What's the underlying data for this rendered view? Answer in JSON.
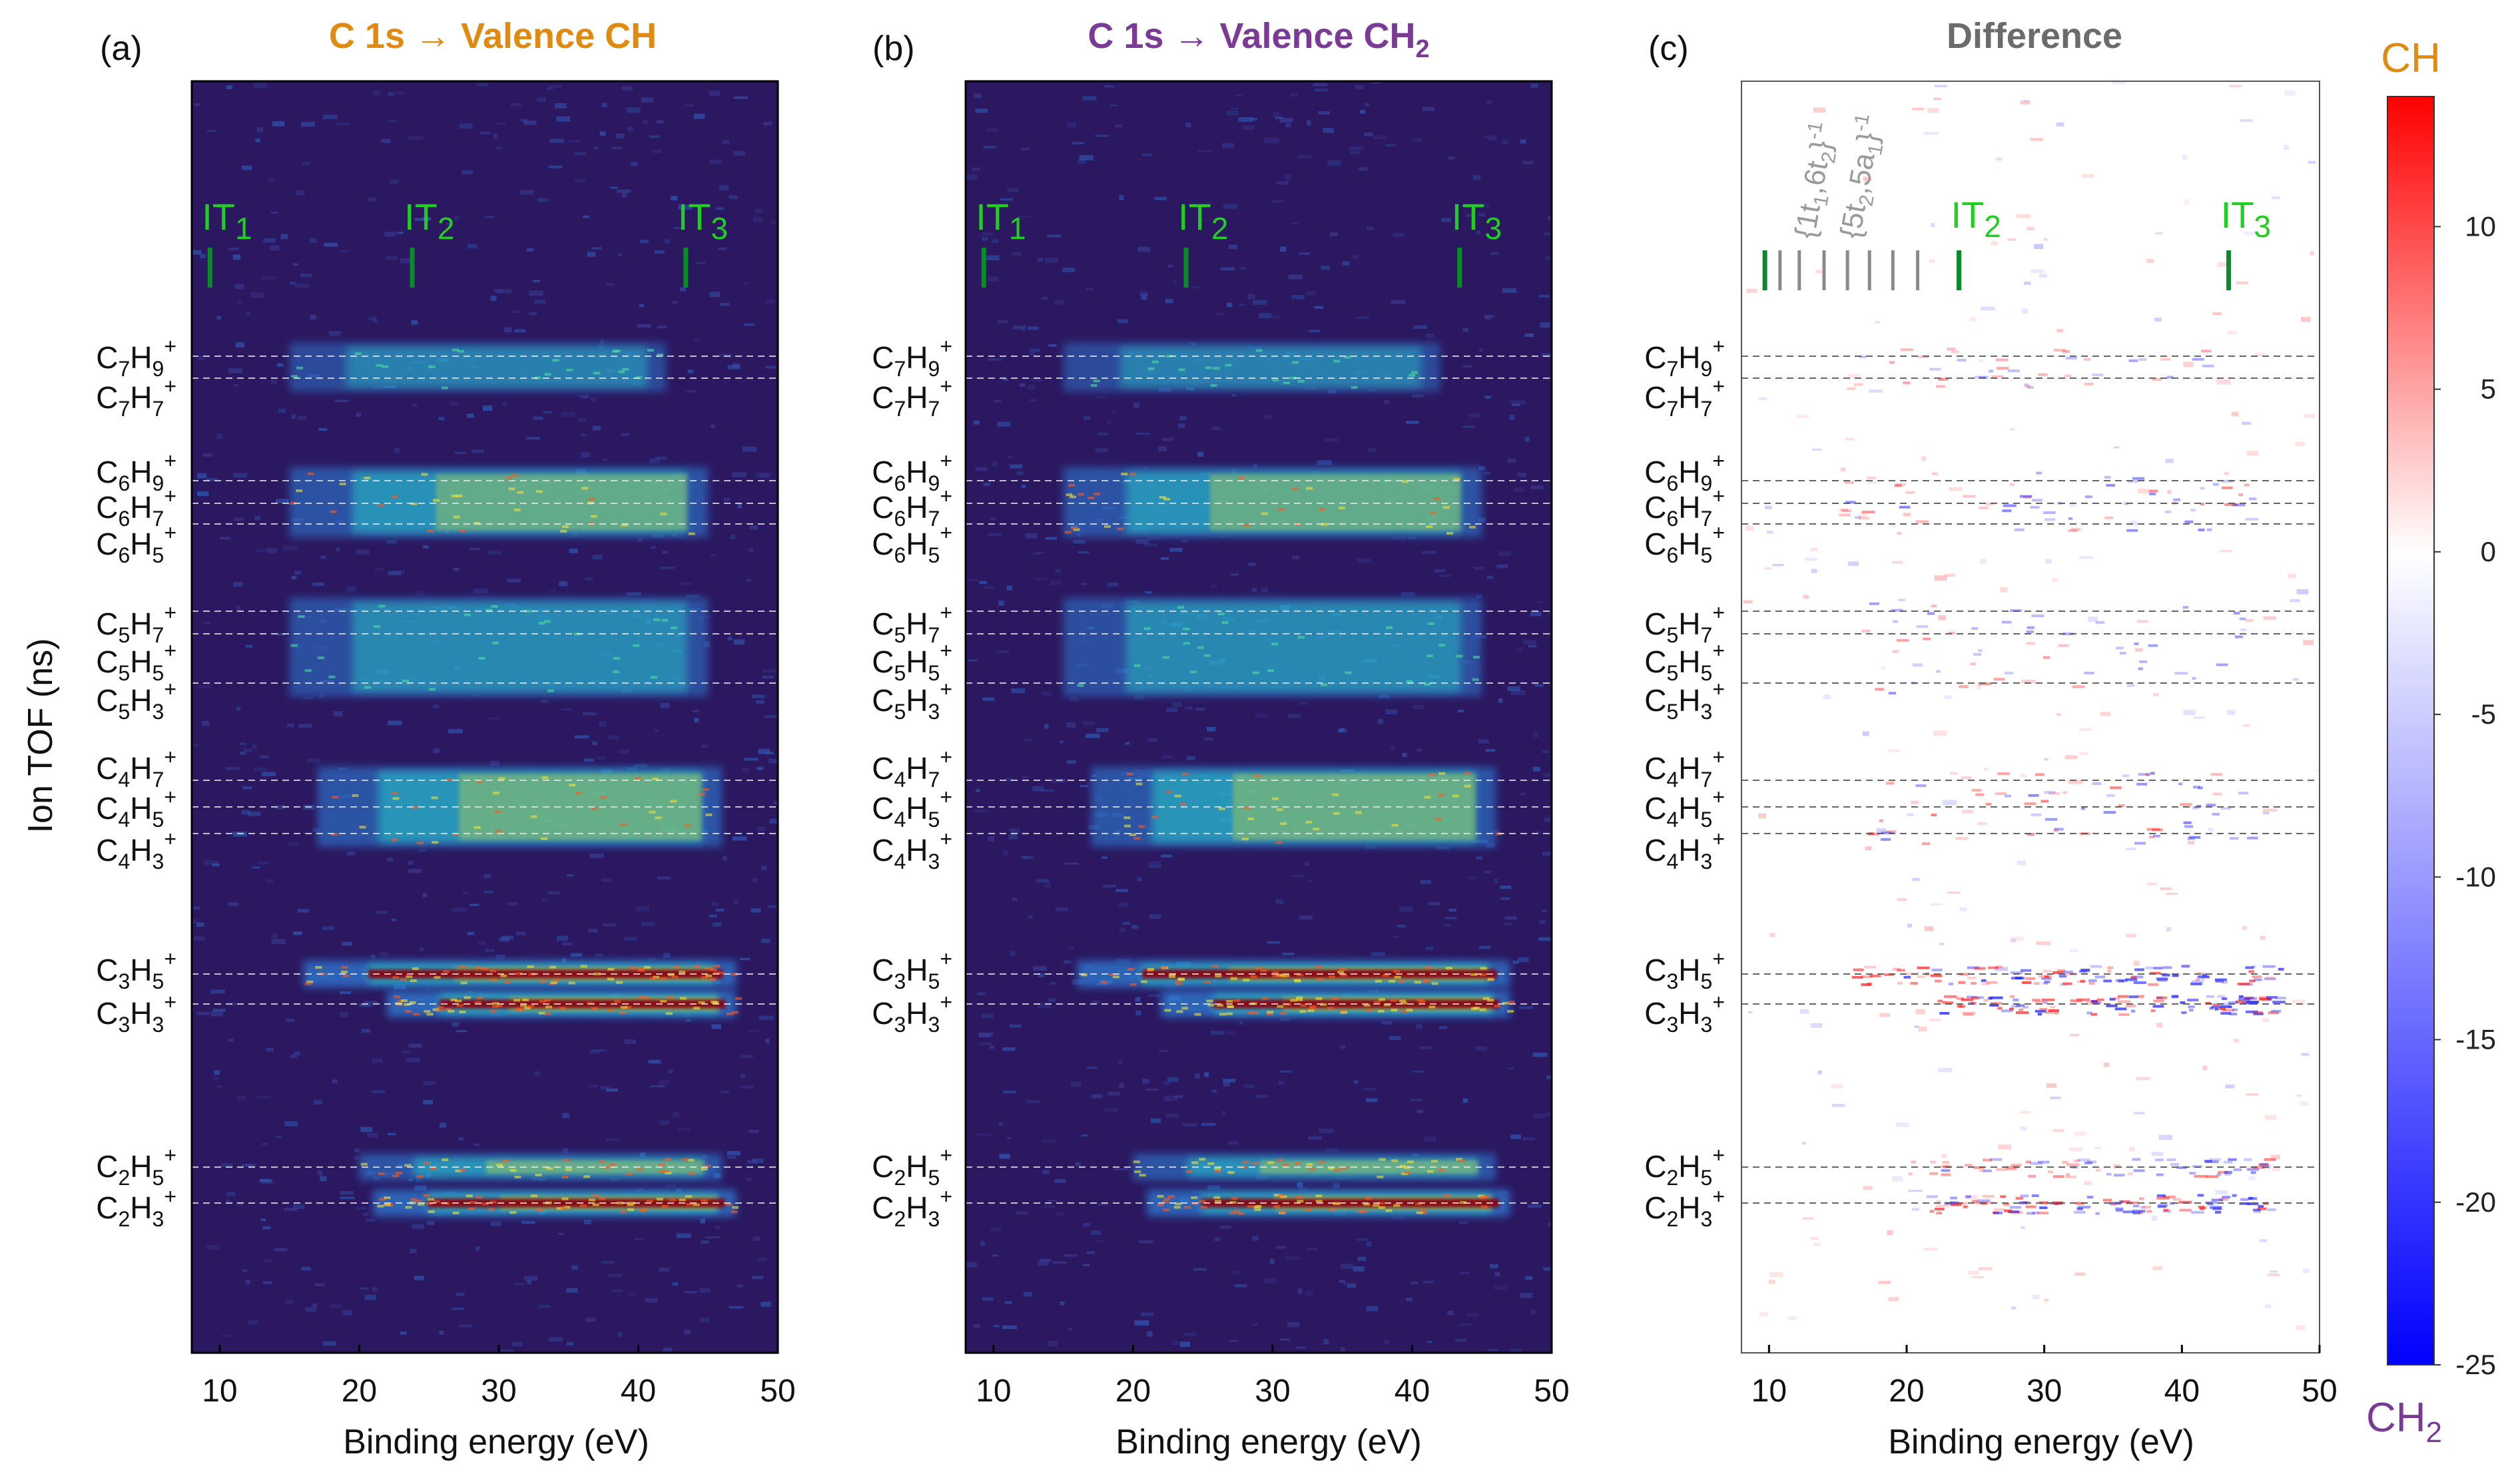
{
  "panels": [
    {
      "label": "(a)",
      "title": "C 1s → Valence CH",
      "title_color": "#e08a10",
      "kind": "heatmap",
      "key": "a"
    },
    {
      "label": "(b)",
      "title": "C 1s → Valence CH",
      "title_sub": "2",
      "title_color": "#7a3a96",
      "kind": "heatmap",
      "key": "b"
    },
    {
      "label": "(c)",
      "title": "Difference",
      "title_color": "#6b6b6b",
      "kind": "difference",
      "key": "c"
    }
  ],
  "chart_data": {
    "type": "heatmap",
    "xlabel": "Binding energy (eV)",
    "ylabel": "Ion TOF (ns)",
    "xlim": [
      8,
      50
    ],
    "x_ticks": [
      10,
      20,
      30,
      40,
      50
    ],
    "ions": [
      {
        "name": "C7H9+",
        "base": "C",
        "n": "7",
        "h": "9"
      },
      {
        "name": "C7H7+",
        "base": "C",
        "n": "7",
        "h": "7"
      },
      {
        "name": "C6H9+",
        "base": "C",
        "n": "6",
        "h": "9"
      },
      {
        "name": "C6H7+",
        "base": "C",
        "n": "6",
        "h": "7"
      },
      {
        "name": "C6H5+",
        "base": "C",
        "n": "6",
        "h": "5"
      },
      {
        "name": "C5H7+",
        "base": "C",
        "n": "5",
        "h": "7"
      },
      {
        "name": "C5H5+",
        "base": "C",
        "n": "5",
        "h": "5"
      },
      {
        "name": "C5H3+",
        "base": "C",
        "n": "5",
        "h": "3"
      },
      {
        "name": "C4H7+",
        "base": "C",
        "n": "4",
        "h": "7"
      },
      {
        "name": "C4H5+",
        "base": "C",
        "n": "4",
        "h": "5"
      },
      {
        "name": "C4H3+",
        "base": "C",
        "n": "4",
        "h": "3"
      },
      {
        "name": "C3H5+",
        "base": "C",
        "n": "3",
        "h": "5"
      },
      {
        "name": "C3H3+",
        "base": "C",
        "n": "3",
        "h": "3"
      },
      {
        "name": "C2H5+",
        "base": "C",
        "n": "2",
        "h": "5"
      },
      {
        "name": "C2H3+",
        "base": "C",
        "n": "2",
        "h": "3"
      }
    ],
    "ionization_thresholds": [
      {
        "label": "IT",
        "sub": "1",
        "energy": 9.3
      },
      {
        "label": "IT",
        "sub": "2",
        "energy": 23.8
      },
      {
        "label": "IT",
        "sub": "3",
        "energy": 43.4
      }
    ],
    "orbital_markers": {
      "energies": [
        9.7,
        10.8,
        12.2,
        14.0,
        15.7,
        17.3,
        19.0,
        20.8
      ],
      "labels": [
        {
          "text": "{1t",
          "s1": "1",
          "mid": ",6t",
          "s2": "2",
          "end": "}",
          "sup": "-1"
        },
        {
          "text": "{5t",
          "s1": "2",
          "mid": ",5a",
          "s2": "1",
          "end": "}",
          "sup": "-1"
        }
      ]
    },
    "intensity_bands": [
      {
        "ions": [
          "C7H9+",
          "C7H7+"
        ],
        "start": 15,
        "end": 42,
        "strength": 0.35
      },
      {
        "ions": [
          "C6H9+",
          "C6H7+",
          "C6H5+"
        ],
        "start": 15,
        "end": 45,
        "strength": 0.55
      },
      {
        "ions": [
          "C5H7+",
          "C5H5+",
          "C5H3+"
        ],
        "start": 15,
        "end": 45,
        "strength": 0.45
      },
      {
        "ions": [
          "C4H7+",
          "C4H5+",
          "C4H3+"
        ],
        "start": 17,
        "end": 46,
        "strength": 0.6
      },
      {
        "ions": [
          "C3H5+"
        ],
        "start": 16,
        "end": 47,
        "strength": 0.95
      },
      {
        "ions": [
          "C3H3+"
        ],
        "start": 22,
        "end": 47,
        "strength": 1.0
      },
      {
        "ions": [
          "C2H5+"
        ],
        "start": 20,
        "end": 46,
        "strength": 0.6
      },
      {
        "ions": [
          "C2H3+"
        ],
        "start": 21,
        "end": 47,
        "strength": 0.95
      }
    ],
    "colorbar": {
      "min": -25,
      "max": 14,
      "ticks": [
        10,
        5,
        0,
        -5,
        -10,
        -15,
        -20,
        -25
      ],
      "top_label": "CH",
      "top_label_color": "#e08a10",
      "bottom_label": "CH",
      "bottom_label_sub": "2",
      "bottom_label_color": "#7a3a96"
    }
  },
  "colors": {
    "heat_bg": "#2b1860",
    "threshold_label": "#20d020",
    "threshold_tick": "#0b8a2a",
    "orbital_tick": "#8a8a8a",
    "orbital_label": "#9a9a9a"
  }
}
